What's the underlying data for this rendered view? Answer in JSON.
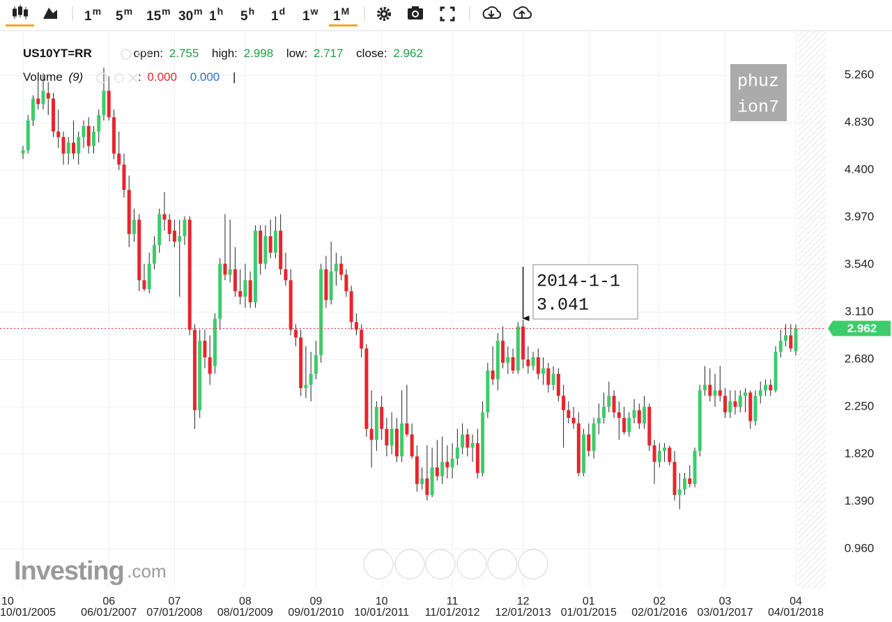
{
  "toolbar": [
    {
      "num": "1",
      "unit": "m"
    },
    {
      "num": "5",
      "unit": "m"
    },
    {
      "num": "15",
      "unit": "m"
    },
    {
      "num": "30",
      "unit": "m"
    },
    {
      "num": "1",
      "unit": "h"
    },
    {
      "num": "5",
      "unit": "h"
    },
    {
      "num": "1",
      "unit": "d"
    },
    {
      "num": "1",
      "unit": "w"
    },
    {
      "num": "1",
      "unit": "M"
    }
  ],
  "legend": {
    "symbol": "US10YT=RR",
    "open_label": "open:",
    "open": 2.755,
    "high_label": "high:",
    "high": 2.998,
    "low_label": "low:",
    "low": 2.717,
    "close_label": "close:",
    "close": 2.962,
    "volume_label": "Volume",
    "volume_period": "(9)",
    "volume_sep": ":",
    "volume_up": "0.000",
    "volume_down": "0.000",
    "cursor": "|"
  },
  "watermark": [
    "phuz",
    "ion7"
  ],
  "logo": {
    "brand": "Investing",
    "suffix": ".com"
  },
  "chart_data": {
    "type": "candlestick",
    "up_color": "#3dcc6b",
    "down_color": "#e8252d",
    "ylim": [
      0.6,
      5.66
    ],
    "yticks": [
      {
        "value": 0.96,
        "label": "0.960"
      },
      {
        "value": 1.39,
        "label": "1.390"
      },
      {
        "value": 1.82,
        "label": "1.820"
      },
      {
        "value": 2.25,
        "label": "2.250"
      },
      {
        "value": 2.68,
        "label": "2.680"
      },
      {
        "value": 3.11,
        "label": "3.110"
      },
      {
        "value": 3.54,
        "label": "3.540"
      },
      {
        "value": 3.97,
        "label": "3.970"
      },
      {
        "value": 4.4,
        "label": "4.400"
      },
      {
        "value": 4.83,
        "label": "4.830"
      },
      {
        "value": 5.26,
        "label": "5.260"
      }
    ],
    "grid": true,
    "annotation": {
      "label": "2014-1-1",
      "value": 3.041
    },
    "categories": [
      {
        "label": "10",
        "date": "10/01/2005"
      },
      null,
      null,
      null,
      null,
      null,
      null,
      null,
      null,
      null,
      null,
      null,
      null,
      null,
      null,
      null,
      null,
      {
        "label": "06",
        "date": "06/01/2007"
      },
      null,
      null,
      null,
      null,
      null,
      null,
      null,
      null,
      null,
      null,
      null,
      null,
      {
        "label": "07",
        "date": "07/01/2008"
      },
      null,
      null,
      null,
      null,
      null,
      null,
      null,
      null,
      null,
      null,
      null,
      null,
      null,
      {
        "label": "08",
        "date": "08/01/2009"
      },
      null,
      null,
      null,
      null,
      null,
      null,
      null,
      null,
      null,
      null,
      null,
      null,
      null,
      {
        "label": "09",
        "date": "09/01/2010"
      },
      null,
      null,
      null,
      null,
      null,
      null,
      null,
      null,
      null,
      null,
      null,
      null,
      {
        "label": "10",
        "date": "10/01/2011"
      },
      null,
      null,
      null,
      null,
      null,
      null,
      null,
      null,
      null,
      null,
      null,
      null,
      null,
      {
        "label": "11",
        "date": "11/01/2012"
      },
      null,
      null,
      null,
      null,
      null,
      null,
      null,
      null,
      null,
      null,
      null,
      null,
      null,
      {
        "label": "12",
        "date": "12/01/2013"
      },
      null,
      null,
      null,
      null,
      null,
      null,
      null,
      null,
      null,
      null,
      null,
      null,
      {
        "label": "01",
        "date": "01/01/2015"
      },
      null,
      null,
      null,
      null,
      null,
      null,
      null,
      null,
      null,
      null,
      null,
      null,
      null,
      {
        "label": "02",
        "date": "02/01/2016"
      },
      null,
      null,
      null,
      null,
      null,
      null,
      null,
      null,
      null,
      null,
      null,
      null,
      {
        "label": "03",
        "date": "03/01/2017"
      },
      null,
      null,
      null,
      null,
      null,
      null,
      null,
      null,
      null,
      null,
      null,
      null,
      null,
      {
        "label": "04",
        "date": "04/01/2018"
      }
    ],
    "ohlc": [
      [
        4.55,
        4.62,
        4.5,
        4.58
      ],
      [
        4.58,
        4.9,
        4.55,
        4.85
      ],
      [
        4.85,
        5.08,
        4.8,
        5.05
      ],
      [
        5.05,
        5.25,
        4.95,
        5.0
      ],
      [
        5.0,
        5.28,
        4.95,
        5.12
      ],
      [
        5.1,
        5.2,
        4.9,
        5.05
      ],
      [
        5.05,
        5.1,
        4.7,
        4.75
      ],
      [
        4.75,
        4.95,
        4.6,
        4.7
      ],
      [
        4.7,
        4.75,
        4.45,
        4.55
      ],
      [
        4.55,
        4.7,
        4.45,
        4.65
      ],
      [
        4.65,
        4.85,
        4.5,
        4.55
      ],
      [
        4.55,
        4.75,
        4.45,
        4.7
      ],
      [
        4.7,
        4.85,
        4.6,
        4.8
      ],
      [
        4.8,
        4.88,
        4.55,
        4.62
      ],
      [
        4.62,
        4.8,
        4.55,
        4.75
      ],
      [
        4.75,
        4.95,
        4.65,
        4.9
      ],
      [
        4.9,
        5.33,
        4.85,
        5.12
      ],
      [
        5.12,
        5.25,
        4.85,
        4.88
      ],
      [
        4.88,
        4.95,
        4.5,
        4.55
      ],
      [
        4.55,
        4.75,
        4.4,
        4.45
      ],
      [
        4.45,
        4.55,
        4.15,
        4.22
      ],
      [
        4.22,
        4.35,
        3.7,
        3.82
      ],
      [
        3.82,
        4.05,
        3.75,
        3.95
      ],
      [
        3.95,
        4.0,
        3.3,
        3.4
      ],
      [
        3.4,
        3.55,
        3.3,
        3.32
      ],
      [
        3.32,
        3.65,
        3.28,
        3.55
      ],
      [
        3.55,
        3.8,
        3.5,
        3.72
      ],
      [
        3.72,
        4.05,
        3.65,
        4.0
      ],
      [
        4.0,
        4.2,
        3.85,
        3.95
      ],
      [
        3.95,
        4.0,
        3.75,
        3.82
      ],
      [
        3.85,
        3.95,
        3.7,
        3.75
      ],
      [
        3.75,
        3.95,
        3.25,
        3.8
      ],
      [
        3.8,
        3.98,
        3.72,
        3.95
      ],
      [
        3.95,
        3.98,
        2.9,
        2.95
      ],
      [
        2.95,
        3.0,
        2.05,
        2.22
      ],
      [
        2.22,
        2.95,
        2.15,
        2.85
      ],
      [
        2.85,
        2.95,
        2.6,
        2.7
      ],
      [
        2.7,
        2.9,
        2.45,
        2.55
      ],
      [
        2.62,
        3.1,
        2.55,
        3.05
      ],
      [
        3.05,
        3.6,
        2.95,
        3.55
      ],
      [
        3.55,
        4.0,
        3.4,
        3.45
      ],
      [
        3.45,
        3.95,
        3.38,
        3.5
      ],
      [
        3.5,
        3.7,
        3.25,
        3.3
      ],
      [
        3.3,
        3.5,
        3.18,
        3.25
      ],
      [
        3.25,
        3.55,
        3.15,
        3.4
      ],
      [
        3.4,
        3.48,
        3.15,
        3.2
      ],
      [
        3.2,
        3.9,
        3.15,
        3.85
      ],
      [
        3.85,
        3.9,
        3.45,
        3.55
      ],
      [
        3.55,
        3.9,
        3.5,
        3.8
      ],
      [
        3.8,
        3.95,
        3.6,
        3.65
      ],
      [
        3.65,
        3.98,
        3.6,
        3.85
      ],
      [
        3.85,
        4.0,
        3.45,
        3.5
      ],
      [
        3.5,
        3.65,
        3.35,
        3.4
      ],
      [
        3.4,
        3.5,
        2.9,
        2.95
      ],
      [
        2.95,
        3.0,
        2.8,
        2.88
      ],
      [
        2.88,
        2.95,
        2.35,
        2.42
      ],
      [
        2.42,
        2.8,
        2.33,
        2.45
      ],
      [
        2.45,
        2.75,
        2.3,
        2.55
      ],
      [
        2.55,
        2.85,
        2.5,
        2.72
      ],
      [
        2.72,
        3.55,
        2.65,
        3.5
      ],
      [
        3.5,
        3.62,
        3.15,
        3.22
      ],
      [
        3.22,
        3.75,
        3.18,
        3.48
      ],
      [
        3.48,
        3.65,
        3.35,
        3.55
      ],
      [
        3.55,
        3.62,
        3.4,
        3.45
      ],
      [
        3.45,
        3.5,
        3.25,
        3.3
      ],
      [
        3.3,
        3.35,
        2.95,
        3.02
      ],
      [
        3.02,
        3.1,
        2.9,
        2.95
      ],
      [
        2.95,
        3.0,
        2.7,
        2.78
      ],
      [
        2.78,
        2.82,
        1.98,
        2.05
      ],
      [
        2.05,
        2.4,
        1.7,
        1.95
      ],
      [
        1.95,
        2.3,
        1.85,
        2.25
      ],
      [
        2.25,
        2.35,
        1.95,
        2.05
      ],
      [
        2.05,
        2.15,
        1.8,
        1.9
      ],
      [
        1.9,
        2.2,
        1.82,
        2.05
      ],
      [
        2.05,
        2.15,
        1.75,
        1.8
      ],
      [
        1.8,
        2.4,
        1.75,
        2.1
      ],
      [
        2.1,
        2.45,
        1.98,
        2.0
      ],
      [
        2.0,
        2.1,
        1.78,
        1.8
      ],
      [
        1.8,
        1.9,
        1.48,
        1.55
      ],
      [
        1.55,
        1.7,
        1.5,
        1.6
      ],
      [
        1.6,
        1.9,
        1.4,
        1.45
      ],
      [
        1.45,
        1.88,
        1.43,
        1.7
      ],
      [
        1.7,
        1.95,
        1.58,
        1.62
      ],
      [
        1.62,
        1.98,
        1.55,
        1.75
      ],
      [
        1.75,
        1.9,
        1.6,
        1.7
      ],
      [
        1.7,
        1.92,
        1.6,
        1.78
      ],
      [
        1.78,
        2.05,
        1.72,
        1.88
      ],
      [
        1.88,
        2.1,
        1.82,
        2.0
      ],
      [
        2.0,
        2.05,
        1.8,
        1.88
      ],
      [
        1.88,
        2.0,
        1.75,
        1.92
      ],
      [
        1.92,
        2.05,
        1.6,
        1.65
      ],
      [
        1.65,
        2.3,
        1.62,
        2.2
      ],
      [
        2.2,
        2.65,
        2.15,
        2.58
      ],
      [
        2.58,
        2.8,
        2.45,
        2.5
      ],
      [
        2.5,
        2.92,
        2.4,
        2.85
      ],
      [
        2.85,
        2.98,
        2.6,
        2.65
      ],
      [
        2.65,
        2.8,
        2.55,
        2.7
      ],
      [
        2.7,
        2.78,
        2.55,
        2.58
      ],
      [
        2.58,
        3.02,
        2.55,
        2.98
      ],
      [
        2.98,
        3.041,
        2.6,
        2.68
      ],
      [
        2.68,
        2.8,
        2.55,
        2.62
      ],
      [
        2.62,
        2.75,
        2.58,
        2.7
      ],
      [
        2.7,
        2.78,
        2.5,
        2.55
      ],
      [
        2.55,
        2.7,
        2.45,
        2.6
      ],
      [
        2.6,
        2.65,
        2.38,
        2.45
      ],
      [
        2.45,
        2.62,
        2.4,
        2.55
      ],
      [
        2.55,
        2.6,
        2.3,
        2.35
      ],
      [
        2.35,
        2.45,
        1.88,
        2.22
      ],
      [
        2.22,
        2.3,
        2.1,
        2.15
      ],
      [
        2.15,
        2.25,
        2.05,
        2.1
      ],
      [
        2.1,
        2.2,
        1.62,
        1.65
      ],
      [
        1.65,
        2.05,
        1.62,
        2.0
      ],
      [
        2.0,
        2.1,
        1.8,
        1.85
      ],
      [
        1.85,
        2.15,
        1.78,
        2.1
      ],
      [
        2.1,
        2.28,
        2.0,
        2.15
      ],
      [
        2.15,
        2.38,
        2.1,
        2.25
      ],
      [
        2.25,
        2.48,
        2.2,
        2.35
      ],
      [
        2.35,
        2.4,
        2.15,
        2.2
      ],
      [
        2.2,
        2.3,
        1.95,
        2.15
      ],
      [
        2.15,
        2.25,
        2.0,
        2.02
      ],
      [
        2.02,
        2.2,
        1.98,
        2.15
      ],
      [
        2.15,
        2.32,
        2.1,
        2.22
      ],
      [
        2.22,
        2.28,
        2.05,
        2.1
      ],
      [
        2.1,
        2.35,
        2.05,
        2.25
      ],
      [
        2.25,
        2.28,
        1.85,
        1.9
      ],
      [
        1.9,
        1.95,
        1.55,
        1.75
      ],
      [
        1.75,
        1.92,
        1.7,
        1.85
      ],
      [
        1.85,
        1.92,
        1.75,
        1.88
      ],
      [
        1.88,
        1.9,
        1.72,
        1.75
      ],
      [
        1.75,
        1.85,
        1.4,
        1.45
      ],
      [
        1.45,
        1.65,
        1.32,
        1.5
      ],
      [
        1.5,
        1.65,
        1.45,
        1.6
      ],
      [
        1.6,
        1.72,
        1.52,
        1.55
      ],
      [
        1.55,
        1.88,
        1.52,
        1.85
      ],
      [
        1.85,
        2.45,
        1.8,
        2.4
      ],
      [
        2.4,
        2.62,
        2.35,
        2.45
      ],
      [
        2.45,
        2.6,
        2.3,
        2.35
      ],
      [
        2.35,
        2.55,
        2.25,
        2.4
      ],
      [
        2.4,
        2.62,
        2.3,
        2.35
      ],
      [
        2.35,
        2.42,
        2.15,
        2.2
      ],
      [
        2.2,
        2.4,
        2.15,
        2.3
      ],
      [
        2.3,
        2.4,
        2.18,
        2.25
      ],
      [
        2.25,
        2.4,
        2.2,
        2.35
      ],
      [
        2.35,
        2.42,
        2.2,
        2.38
      ],
      [
        2.38,
        2.4,
        2.05,
        2.12
      ],
      [
        2.12,
        2.4,
        2.08,
        2.35
      ],
      [
        2.35,
        2.48,
        2.28,
        2.4
      ],
      [
        2.4,
        2.5,
        2.35,
        2.45
      ],
      [
        2.45,
        2.5,
        2.35,
        2.4
      ],
      [
        2.4,
        2.8,
        2.38,
        2.75
      ],
      [
        2.75,
        2.95,
        2.7,
        2.85
      ],
      [
        2.85,
        3.0,
        2.8,
        2.9
      ],
      [
        2.9,
        3.0,
        2.75,
        2.78
      ],
      [
        2.755,
        2.998,
        2.717,
        2.962
      ]
    ]
  }
}
